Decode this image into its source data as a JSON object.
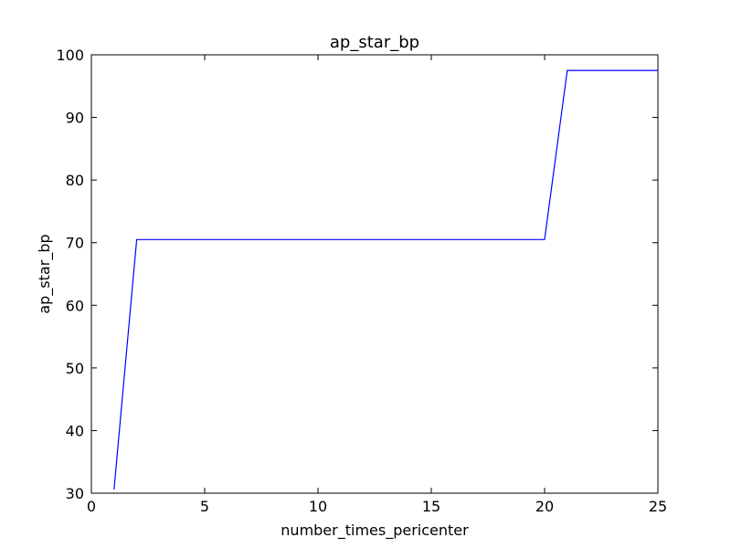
{
  "chart_data": {
    "type": "line",
    "title": "ap_star_bp",
    "xlabel": "number_times_pericenter",
    "ylabel": "ap_star_bp",
    "xlim": [
      0,
      25
    ],
    "ylim": [
      30,
      100
    ],
    "xticks": [
      0,
      5,
      10,
      15,
      20,
      25
    ],
    "yticks": [
      30,
      40,
      50,
      60,
      70,
      80,
      90,
      100
    ],
    "grid": false,
    "legend": "none",
    "series": [
      {
        "color": "#0000ff",
        "x": [
          1,
          2,
          3,
          4,
          5,
          6,
          7,
          8,
          9,
          10,
          11,
          12,
          13,
          14,
          15,
          16,
          17,
          18,
          19,
          20,
          21,
          22,
          23,
          24,
          25
        ],
        "y": [
          30.6,
          70.5,
          70.5,
          70.5,
          70.5,
          70.5,
          70.5,
          70.5,
          70.5,
          70.5,
          70.5,
          70.5,
          70.5,
          70.5,
          70.5,
          70.5,
          70.5,
          70.5,
          70.5,
          70.5,
          97.5,
          97.5,
          97.5,
          97.5,
          97.5
        ]
      }
    ]
  }
}
